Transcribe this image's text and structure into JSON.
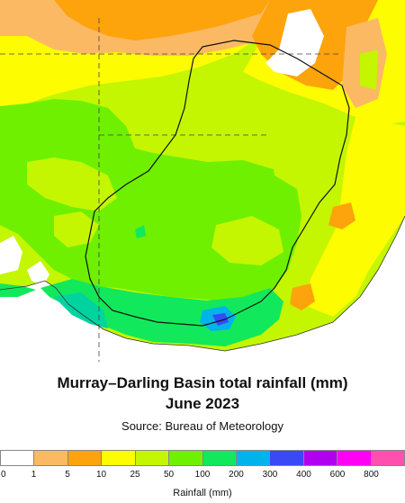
{
  "title_line1": "Murray–Darling Basin total rainfall (mm)",
  "title_line2": "June 2023",
  "source": "Source: Bureau of Meteorology",
  "legend": {
    "label": "Rainfall (mm)",
    "ticks": [
      "0",
      "1",
      "5",
      "10",
      "25",
      "50",
      "100",
      "200",
      "300",
      "400",
      "600",
      "800"
    ],
    "colors": [
      "#ffffff",
      "#fcb964",
      "#fda30c",
      "#fdfc00",
      "#c3f600",
      "#6ef000",
      "#12e85b",
      "#00b3eb",
      "#3949f5",
      "#b000f0",
      "#ff00f5",
      "#ff50b0"
    ]
  }
}
